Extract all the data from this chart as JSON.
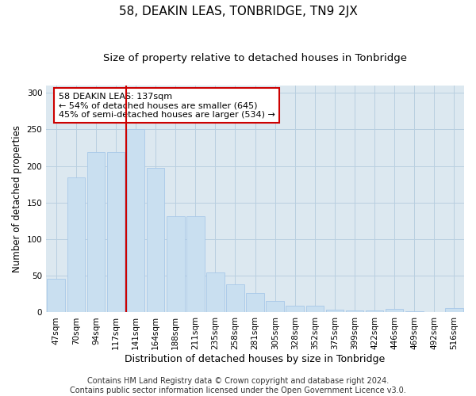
{
  "title": "58, DEAKIN LEAS, TONBRIDGE, TN9 2JX",
  "subtitle": "Size of property relative to detached houses in Tonbridge",
  "xlabel": "Distribution of detached houses by size in Tonbridge",
  "ylabel": "Number of detached properties",
  "categories": [
    "47sqm",
    "70sqm",
    "94sqm",
    "117sqm",
    "141sqm",
    "164sqm",
    "188sqm",
    "211sqm",
    "235sqm",
    "258sqm",
    "281sqm",
    "305sqm",
    "328sqm",
    "352sqm",
    "375sqm",
    "399sqm",
    "422sqm",
    "446sqm",
    "469sqm",
    "492sqm",
    "516sqm"
  ],
  "values": [
    46,
    184,
    219,
    219,
    250,
    197,
    132,
    132,
    55,
    38,
    27,
    16,
    9,
    9,
    4,
    3,
    3,
    5,
    2,
    1,
    6
  ],
  "bar_color": "#c9dff0",
  "bar_edge_color": "#a8c8e8",
  "vline_x": 3.5,
  "vline_color": "#cc0000",
  "annotation_text": "58 DEAKIN LEAS: 137sqm\n← 54% of detached houses are smaller (645)\n45% of semi-detached houses are larger (534) →",
  "annotation_box_color": "white",
  "annotation_box_edge": "#cc0000",
  "ylim": [
    0,
    310
  ],
  "yticks": [
    0,
    50,
    100,
    150,
    200,
    250,
    300
  ],
  "grid_color": "#b8cfe0",
  "bg_color": "#dce8f0",
  "footer": "Contains HM Land Registry data © Crown copyright and database right 2024.\nContains public sector information licensed under the Open Government Licence v3.0.",
  "title_fontsize": 11,
  "subtitle_fontsize": 9.5,
  "xlabel_fontsize": 9,
  "ylabel_fontsize": 8.5,
  "tick_fontsize": 7.5,
  "annotation_fontsize": 8,
  "footer_fontsize": 7
}
